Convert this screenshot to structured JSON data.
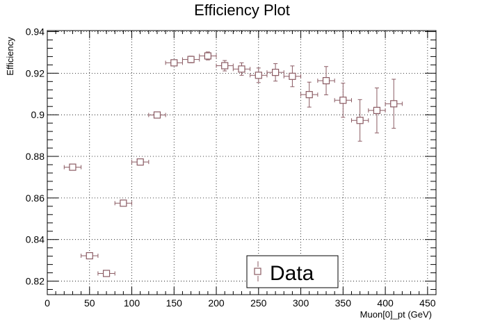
{
  "chart_data": {
    "type": "scatter",
    "title": "Efficiency Plot",
    "xlabel": "Muon[0]_pt (GeV)",
    "ylabel": "Efficiency",
    "xlim": [
      0,
      460
    ],
    "ylim": [
      0.8135,
      0.9405
    ],
    "grid": true,
    "legend_position": "bottom-center",
    "marker_color": "#8a5a62",
    "x_ticks": [
      0,
      50,
      100,
      150,
      200,
      250,
      300,
      350,
      400,
      450
    ],
    "x_tick_labels": [
      "0",
      "50",
      "100",
      "150",
      "200",
      "250",
      "300",
      "350",
      "400",
      "450"
    ],
    "y_ticks": [
      0.82,
      0.84,
      0.86,
      0.88,
      0.9,
      0.92,
      0.94
    ],
    "y_tick_labels": [
      "0.82",
      "0.84",
      "0.86",
      "0.88",
      "0.9",
      "0.92",
      "0.94"
    ],
    "series": [
      {
        "name": "Data",
        "points": [
          {
            "x": 30,
            "y": 0.8748,
            "xerr": 10,
            "yerr": 0.0004
          },
          {
            "x": 50,
            "y": 0.8322,
            "xerr": 10,
            "yerr": 0.0005
          },
          {
            "x": 70,
            "y": 0.8237,
            "xerr": 10,
            "yerr": 0.0006
          },
          {
            "x": 90,
            "y": 0.8575,
            "xerr": 10,
            "yerr": 0.0007
          },
          {
            "x": 110,
            "y": 0.8773,
            "xerr": 10,
            "yerr": 0.0009
          },
          {
            "x": 130,
            "y": 0.8999,
            "xerr": 10,
            "yerr": 0.001
          },
          {
            "x": 150,
            "y": 0.925,
            "xerr": 10,
            "yerr": 0.0013
          },
          {
            "x": 170,
            "y": 0.9266,
            "xerr": 10,
            "yerr": 0.0016
          },
          {
            "x": 190,
            "y": 0.9283,
            "xerr": 10,
            "yerr": 0.0019
          },
          {
            "x": 210,
            "y": 0.9236,
            "xerr": 10,
            "yerr": 0.0025
          },
          {
            "x": 230,
            "y": 0.922,
            "xerr": 10,
            "yerr": 0.003
          },
          {
            "x": 250,
            "y": 0.919,
            "xerr": 10,
            "yerr": 0.0035
          },
          {
            "x": 270,
            "y": 0.9204,
            "xerr": 10,
            "yerr": 0.0042
          },
          {
            "x": 290,
            "y": 0.9185,
            "xerr": 10,
            "yerr": 0.005
          },
          {
            "x": 310,
            "y": 0.9097,
            "xerr": 10,
            "yerr": 0.006
          },
          {
            "x": 330,
            "y": 0.9164,
            "xerr": 10,
            "yerr": 0.0068
          },
          {
            "x": 350,
            "y": 0.907,
            "xerr": 10,
            "yerr": 0.0082
          },
          {
            "x": 370,
            "y": 0.8973,
            "xerr": 10,
            "yerr": 0.01
          },
          {
            "x": 390,
            "y": 0.9021,
            "xerr": 10,
            "yerr": 0.0108
          },
          {
            "x": 410,
            "y": 0.9053,
            "xerr": 10,
            "yerr": 0.0118
          }
        ]
      }
    ]
  }
}
